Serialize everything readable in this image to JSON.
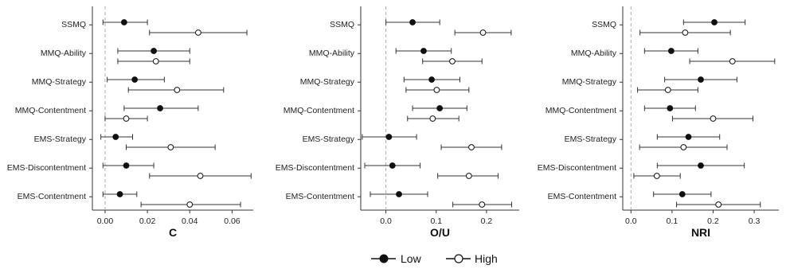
{
  "chart_data": [
    {
      "type": "scatter",
      "xlabel": "C",
      "xlim": [
        -0.006,
        0.07
      ],
      "xticks": [
        0.0,
        0.02,
        0.04,
        0.06
      ],
      "tick_labels": [
        "0.00",
        "0.02",
        "0.04",
        "0.06"
      ],
      "reference_line": 0,
      "categories": [
        "SSMQ",
        "MMQ-Ability",
        "MMQ-Strategy",
        "MMQ-Contentment",
        "EMS-Strategy",
        "EMS-Discontentment",
        "EMS-Contentment"
      ],
      "series": [
        {
          "name": "Low",
          "values": [
            0.009,
            0.023,
            0.014,
            0.026,
            0.005,
            0.01,
            0.007
          ],
          "lower": [
            -0.001,
            0.006,
            0.001,
            0.009,
            -0.002,
            -0.001,
            -0.001
          ],
          "upper": [
            0.02,
            0.04,
            0.028,
            0.044,
            0.013,
            0.023,
            0.015
          ]
        },
        {
          "name": "High",
          "values": [
            0.044,
            0.024,
            0.034,
            0.01,
            0.031,
            0.045,
            0.04
          ],
          "lower": [
            0.021,
            0.006,
            0.011,
            0.0,
            0.01,
            0.021,
            0.017
          ],
          "upper": [
            0.067,
            0.04,
            0.056,
            0.02,
            0.052,
            0.069,
            0.064
          ]
        }
      ]
    },
    {
      "type": "scatter",
      "xlabel": "O/U",
      "xlim": [
        -0.05,
        0.265
      ],
      "xticks": [
        0.0,
        0.1,
        0.2
      ],
      "tick_labels": [
        "0.0",
        "0.1",
        "0.2"
      ],
      "reference_line": 0,
      "categories": [
        "SSMQ",
        "MMQ-Ability",
        "MMQ-Strategy",
        "MMQ-Contentment",
        "EMS-Strategy",
        "EMS-Discontentment",
        "EMS-Contentment"
      ],
      "series": [
        {
          "name": "Low",
          "values": [
            0.053,
            0.075,
            0.091,
            0.107,
            0.006,
            0.013,
            0.026
          ],
          "lower": [
            0.0,
            0.02,
            0.036,
            0.053,
            -0.047,
            -0.042,
            -0.031
          ],
          "upper": [
            0.107,
            0.13,
            0.147,
            0.161,
            0.061,
            0.068,
            0.083
          ]
        },
        {
          "name": "High",
          "values": [
            0.193,
            0.132,
            0.101,
            0.093,
            0.17,
            0.165,
            0.191
          ],
          "lower": [
            0.137,
            0.073,
            0.04,
            0.043,
            0.11,
            0.103,
            0.133
          ],
          "upper": [
            0.249,
            0.191,
            0.165,
            0.145,
            0.23,
            0.223,
            0.25
          ]
        }
      ]
    },
    {
      "type": "scatter",
      "xlabel": "NRI",
      "xlim": [
        -0.02,
        0.36
      ],
      "xticks": [
        0.0,
        0.1,
        0.2,
        0.3
      ],
      "tick_labels": [
        "0.0",
        "0.1",
        "0.2",
        "0.3"
      ],
      "reference_line": 0,
      "categories": [
        "SSMQ",
        "MMQ-Ability",
        "MMQ-Strategy",
        "MMQ-Contentment",
        "EMS-Strategy",
        "EMS-Discontentment",
        "EMS-Contentment"
      ],
      "series": [
        {
          "name": "Low",
          "values": [
            0.203,
            0.098,
            0.17,
            0.095,
            0.14,
            0.17,
            0.125
          ],
          "lower": [
            0.128,
            0.033,
            0.082,
            0.033,
            0.064,
            0.064,
            0.055
          ],
          "upper": [
            0.278,
            0.163,
            0.258,
            0.157,
            0.216,
            0.276,
            0.195
          ]
        },
        {
          "name": "High",
          "values": [
            0.132,
            0.247,
            0.09,
            0.2,
            0.128,
            0.063,
            0.213
          ],
          "lower": [
            0.022,
            0.143,
            0.016,
            0.101,
            0.021,
            0.007,
            0.111
          ],
          "upper": [
            0.242,
            0.35,
            0.163,
            0.297,
            0.234,
            0.12,
            0.315
          ]
        }
      ]
    }
  ],
  "legend": {
    "items": [
      {
        "label": "Low",
        "marker": "filled-circle"
      },
      {
        "label": "High",
        "marker": "open-circle"
      }
    ],
    "placement": "bottom-center"
  },
  "colors": {
    "axis": "#333333",
    "errorbar": "#333333",
    "reference": "#aaaaaa",
    "low_fill": "#111111",
    "high_fill": "#ffffff"
  }
}
